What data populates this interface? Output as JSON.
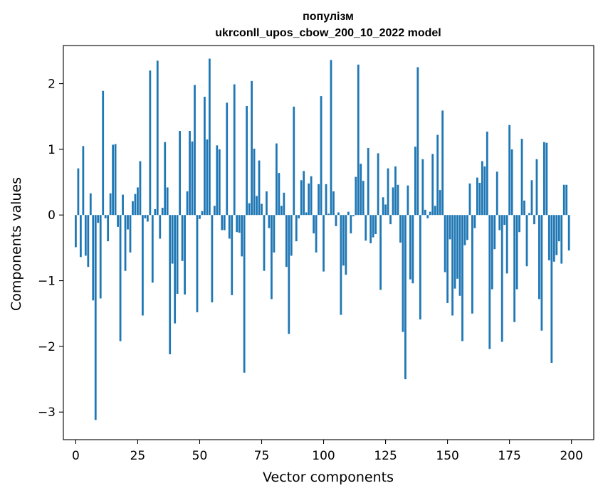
{
  "chart_data": {
    "type": "bar",
    "title": "популізм",
    "subtitle": "ukrconll_upos_cbow_200_10_2022 model",
    "xlabel": "Vector components",
    "ylabel": "Components values",
    "xlim": [
      -5,
      209
    ],
    "ylim": [
      -3.42,
      2.58
    ],
    "xticks": [
      0,
      25,
      50,
      75,
      100,
      125,
      150,
      175,
      200
    ],
    "xtick_labels": [
      "0",
      "25",
      "50",
      "75",
      "100",
      "125",
      "150",
      "175",
      "200"
    ],
    "yticks": [
      -3,
      -2,
      -1,
      0,
      1,
      2
    ],
    "ytick_labels": [
      "−3",
      "−2",
      "−1",
      "0",
      "1",
      "2"
    ],
    "grid": false,
    "legend": "none",
    "bar_color": "#1f77b4",
    "x": [
      0,
      1,
      2,
      3,
      4,
      5,
      6,
      7,
      8,
      9,
      10,
      11,
      12,
      13,
      14,
      15,
      16,
      17,
      18,
      19,
      20,
      21,
      22,
      23,
      24,
      25,
      26,
      27,
      28,
      29,
      30,
      31,
      32,
      33,
      34,
      35,
      36,
      37,
      38,
      39,
      40,
      41,
      42,
      43,
      44,
      45,
      46,
      47,
      48,
      49,
      50,
      51,
      52,
      53,
      54,
      55,
      56,
      57,
      58,
      59,
      60,
      61,
      62,
      63,
      64,
      65,
      66,
      67,
      68,
      69,
      70,
      71,
      72,
      73,
      74,
      75,
      76,
      77,
      78,
      79,
      80,
      81,
      82,
      83,
      84,
      85,
      86,
      87,
      88,
      89,
      90,
      91,
      92,
      93,
      94,
      95,
      96,
      97,
      98,
      99,
      100,
      101,
      102,
      103,
      104,
      105,
      106,
      107,
      108,
      109,
      110,
      111,
      112,
      113,
      114,
      115,
      116,
      117,
      118,
      119,
      120,
      121,
      122,
      123,
      124,
      125,
      126,
      127,
      128,
      129,
      130,
      131,
      132,
      133,
      134,
      135,
      136,
      137,
      138,
      139,
      140,
      141,
      142,
      143,
      144,
      145,
      146,
      147,
      148,
      149,
      150,
      151,
      152,
      153,
      154,
      155,
      156,
      157,
      158,
      159,
      160,
      161,
      162,
      163,
      164,
      165,
      166,
      167,
      168,
      169,
      170,
      171,
      172,
      173,
      174,
      175,
      176,
      177,
      178,
      179,
      180,
      181,
      182,
      183,
      184,
      185,
      186,
      187,
      188,
      189,
      190,
      191,
      192,
      193,
      194,
      195,
      196,
      197,
      198,
      199
    ],
    "values": [
      -0.49,
      0.71,
      -0.64,
      1.05,
      -0.62,
      -0.79,
      0.33,
      -1.3,
      -3.12,
      -0.12,
      -1.27,
      1.89,
      -0.05,
      -0.4,
      0.33,
      1.07,
      1.08,
      -0.18,
      -1.92,
      0.31,
      -0.85,
      -0.22,
      -0.57,
      0.21,
      0.32,
      0.42,
      0.82,
      -1.53,
      -0.05,
      -0.1,
      2.2,
      -1.03,
      0.09,
      2.35,
      -0.36,
      0.11,
      1.11,
      0.42,
      -2.12,
      -0.74,
      -1.65,
      -1.2,
      1.28,
      -0.7,
      -1.21,
      0.36,
      1.28,
      1.12,
      1.98,
      -1.48,
      -0.06,
      0.06,
      1.8,
      1.15,
      2.38,
      -1.33,
      0.14,
      1.06,
      1.0,
      -0.23,
      -0.23,
      1.71,
      -0.36,
      -1.22,
      1.99,
      -0.26,
      -0.27,
      -0.63,
      -2.4,
      1.66,
      0.18,
      2.04,
      1.01,
      0.29,
      0.83,
      0.17,
      -0.85,
      0.36,
      -0.2,
      -1.28,
      -0.57,
      1.09,
      0.64,
      0.14,
      0.34,
      -0.79,
      -1.81,
      -0.62,
      1.65,
      -0.4,
      -0.05,
      0.53,
      0.67,
      0.04,
      0.48,
      0.59,
      -0.28,
      -0.57,
      0.47,
      1.81,
      -0.86,
      0.47,
      0.02,
      2.36,
      0.36,
      -0.17,
      0.04,
      -1.52,
      -0.77,
      -0.91,
      0.05,
      -0.28,
      -0.02,
      0.58,
      2.29,
      0.78,
      0.52,
      -0.39,
      1.02,
      -0.43,
      -0.34,
      -0.29,
      0.94,
      -1.14,
      0.27,
      0.16,
      0.71,
      -0.14,
      0.42,
      0.74,
      0.46,
      -0.42,
      -1.78,
      -2.5,
      0.45,
      -0.98,
      -1.04,
      1.04,
      2.25,
      -1.59,
      0.85,
      0.08,
      -0.05,
      0.05,
      0.93,
      0.14,
      1.22,
      0.38,
      1.59,
      -0.87,
      -1.34,
      -0.37,
      -1.53,
      -1.12,
      -0.97,
      -1.23,
      -1.92,
      -0.46,
      -0.38,
      0.48,
      -1.5,
      -0.2,
      0.57,
      0.49,
      0.82,
      0.74,
      1.27,
      -2.04,
      -1.13,
      -0.52,
      0.66,
      -0.23,
      -1.93,
      -0.15,
      -0.89,
      1.37,
      1.0,
      -1.63,
      -1.13,
      -0.26,
      1.16,
      0.22,
      -0.78,
      0.03,
      0.53,
      -0.14,
      0.85,
      -1.28,
      -1.76,
      1.11,
      1.1,
      -0.69,
      -2.25,
      -0.71,
      -0.61,
      -0.4,
      -0.74,
      0.46,
      0.46,
      -0.54
    ]
  }
}
